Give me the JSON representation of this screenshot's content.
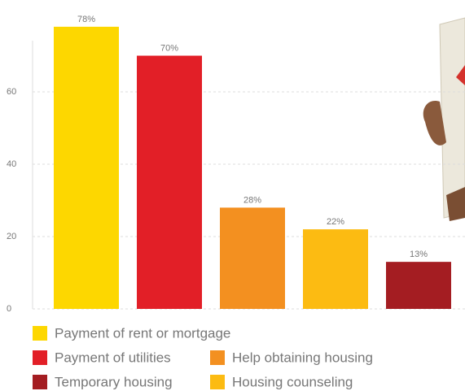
{
  "chart_data": {
    "type": "bar",
    "categories": [
      "Payment of rent or mortgage",
      "Payment of utilities",
      "Help obtaining housing",
      "Housing counseling",
      "Temporary housing"
    ],
    "values": [
      78,
      70,
      28,
      22,
      13
    ],
    "value_labels": [
      "78%",
      "70%",
      "28%",
      "22%",
      "13%"
    ],
    "colors": [
      "#fdd700",
      "#e21f27",
      "#f39020",
      "#fcbb12",
      "#a41d22"
    ],
    "ylim": [
      0,
      80
    ],
    "yticks": [
      0,
      20,
      40,
      60
    ],
    "grid": true
  }
}
